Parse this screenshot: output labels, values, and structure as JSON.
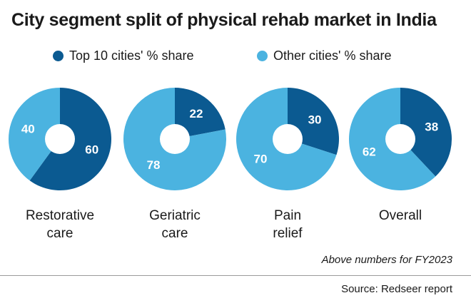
{
  "chart_data": {
    "type": "pie",
    "title": "City segment split of physical rehab market in India",
    "series": [
      {
        "name": "Top 10 cities' % share",
        "color": "#0b5a91"
      },
      {
        "name": "Other cities' % share",
        "color": "#4bb3e0"
      }
    ],
    "categories": [
      {
        "label_lines": [
          "Restorative",
          "care"
        ],
        "values": [
          60,
          40
        ],
        "value_labels": [
          "60",
          "40"
        ]
      },
      {
        "label_lines": [
          "Geriatric",
          "care"
        ],
        "values": [
          22,
          78
        ],
        "value_labels": [
          "22",
          "78"
        ]
      },
      {
        "label_lines": [
          "Pain",
          "relief"
        ],
        "values": [
          30,
          70
        ],
        "value_labels": [
          "30",
          "70"
        ]
      },
      {
        "label_lines": [
          "Overall"
        ],
        "values": [
          38,
          62
        ],
        "value_labels": [
          "38",
          "62"
        ]
      }
    ],
    "note": "Above numbers for FY2023",
    "source": "Source: Redseer report"
  }
}
